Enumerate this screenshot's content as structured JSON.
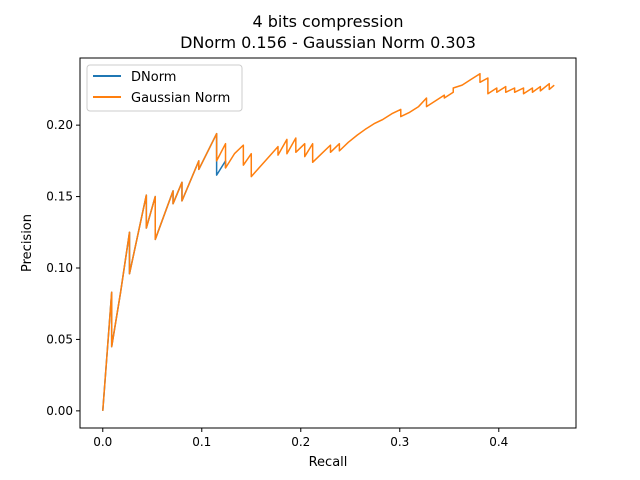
{
  "chart_data": {
    "type": "line",
    "title": "4 bits compression",
    "subtitle": "DNorm 0.156 - Gaussian Norm 0.303",
    "xlabel": "Recall",
    "ylabel": "Precision",
    "xlim": [
      -0.023,
      0.478
    ],
    "ylim": [
      -0.012,
      0.247
    ],
    "xticks": [
      0.0,
      0.1,
      0.2,
      0.3,
      0.4
    ],
    "xtick_labels": [
      "0.0",
      "0.1",
      "0.2",
      "0.3",
      "0.4"
    ],
    "yticks": [
      0.0,
      0.05,
      0.1,
      0.15,
      0.2
    ],
    "ytick_labels": [
      "0.00",
      "0.05",
      "0.10",
      "0.15",
      "0.20"
    ],
    "grid": false,
    "legend": "top-left",
    "series": [
      {
        "name": "DNorm",
        "color": "#1f77b4",
        "x": [
          0.0,
          0.009,
          0.009,
          0.018,
          0.027,
          0.027,
          0.044,
          0.044,
          0.053,
          0.053,
          0.071,
          0.071,
          0.08,
          0.08,
          0.097,
          0.097,
          0.115,
          0.115,
          0.124,
          0.124
        ],
        "y": [
          0.0,
          0.083,
          0.045,
          0.083,
          0.125,
          0.096,
          0.151,
          0.128,
          0.15,
          0.12,
          0.154,
          0.145,
          0.16,
          0.147,
          0.175,
          0.169,
          0.194,
          0.165,
          0.175,
          0.17
        ]
      },
      {
        "name": "Gaussian Norm",
        "color": "#ff7f0e",
        "x": [
          0.0,
          0.009,
          0.009,
          0.018,
          0.027,
          0.027,
          0.044,
          0.044,
          0.053,
          0.053,
          0.071,
          0.071,
          0.08,
          0.08,
          0.097,
          0.097,
          0.115,
          0.115,
          0.124,
          0.124,
          0.133,
          0.142,
          0.142,
          0.15,
          0.15,
          0.168,
          0.177,
          0.177,
          0.186,
          0.186,
          0.195,
          0.195,
          0.204,
          0.204,
          0.212,
          0.212,
          0.221,
          0.23,
          0.23,
          0.239,
          0.239,
          0.248,
          0.257,
          0.265,
          0.274,
          0.283,
          0.292,
          0.301,
          0.301,
          0.31,
          0.319,
          0.327,
          0.327,
          0.336,
          0.345,
          0.345,
          0.354,
          0.354,
          0.363,
          0.372,
          0.381,
          0.381,
          0.389,
          0.389,
          0.398,
          0.398,
          0.407,
          0.407,
          0.416,
          0.416,
          0.425,
          0.425,
          0.434,
          0.434,
          0.442,
          0.442,
          0.451,
          0.451,
          0.456
        ],
        "y": [
          0.0,
          0.083,
          0.045,
          0.083,
          0.125,
          0.096,
          0.151,
          0.128,
          0.15,
          0.12,
          0.154,
          0.145,
          0.16,
          0.147,
          0.175,
          0.169,
          0.194,
          0.175,
          0.187,
          0.17,
          0.18,
          0.186,
          0.172,
          0.18,
          0.164,
          0.178,
          0.185,
          0.179,
          0.19,
          0.18,
          0.191,
          0.181,
          0.187,
          0.178,
          0.187,
          0.174,
          0.18,
          0.186,
          0.181,
          0.187,
          0.182,
          0.188,
          0.193,
          0.197,
          0.201,
          0.204,
          0.208,
          0.211,
          0.206,
          0.209,
          0.213,
          0.219,
          0.213,
          0.217,
          0.221,
          0.219,
          0.223,
          0.226,
          0.228,
          0.232,
          0.236,
          0.23,
          0.233,
          0.222,
          0.226,
          0.223,
          0.227,
          0.223,
          0.226,
          0.223,
          0.226,
          0.222,
          0.226,
          0.223,
          0.227,
          0.224,
          0.229,
          0.225,
          0.228
        ]
      }
    ]
  }
}
